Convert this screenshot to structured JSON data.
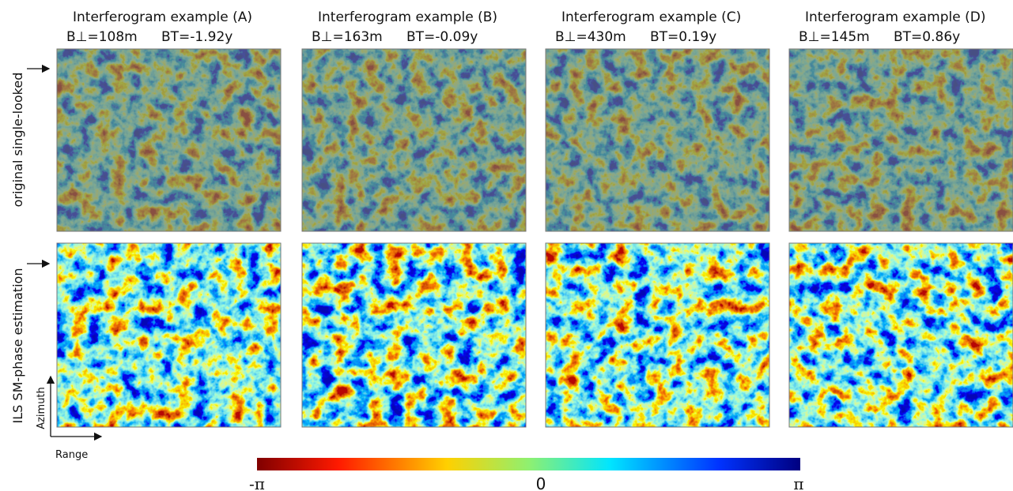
{
  "columns": [
    {
      "title": "Interferogram example (A)",
      "b_perp": "B⊥=108m",
      "b_temp": "BT=-1.92y"
    },
    {
      "title": "Interferogram example (B)",
      "b_perp": "B⊥=163m",
      "b_temp": "BT=-0.09y"
    },
    {
      "title": "Interferogram example (C)",
      "b_perp": "B⊥=430m",
      "b_temp": "BT=0.19y"
    },
    {
      "title": "Interferogram example (D)",
      "b_perp": "B⊥=145m",
      "b_temp": "BT=0.86y"
    }
  ],
  "rows": [
    "original single-looked",
    "ILS SM-phase estimation"
  ],
  "axes": {
    "azimuth": "Azimuth",
    "range": "Range"
  },
  "colorbar": {
    "labels": [
      "-π",
      "0",
      "π"
    ]
  }
}
